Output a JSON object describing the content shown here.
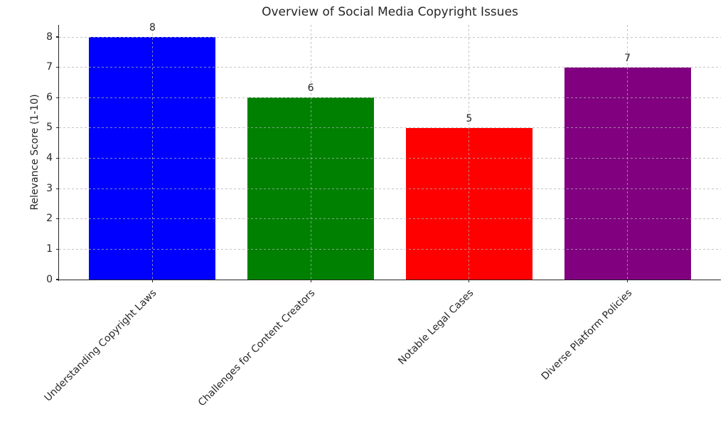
{
  "chart_data": {
    "type": "bar",
    "title": "Overview of Social Media Copyright Issues",
    "xlabel": "",
    "ylabel": "Relevance Score (1-10)",
    "categories": [
      "Understanding Copyright Laws",
      "Challenges for Content Creators",
      "Notable Legal Cases",
      "Diverse Platform Policies"
    ],
    "values": [
      8,
      6,
      5,
      7
    ],
    "bar_colors": [
      "#0000ff",
      "#008000",
      "#ff0000",
      "#800080"
    ],
    "yticks": [
      0,
      1,
      2,
      3,
      4,
      5,
      6,
      7,
      8
    ],
    "ylim": [
      0,
      8.4
    ],
    "bar_width_fraction": 0.8,
    "value_labels_shown": true,
    "grid": {
      "visible": true,
      "style": "dashed",
      "axes": "both",
      "color": "#b0b0b0"
    },
    "legend": null,
    "colors": {
      "background": "#ffffff",
      "axis": "#262626",
      "text": "#262626"
    }
  }
}
